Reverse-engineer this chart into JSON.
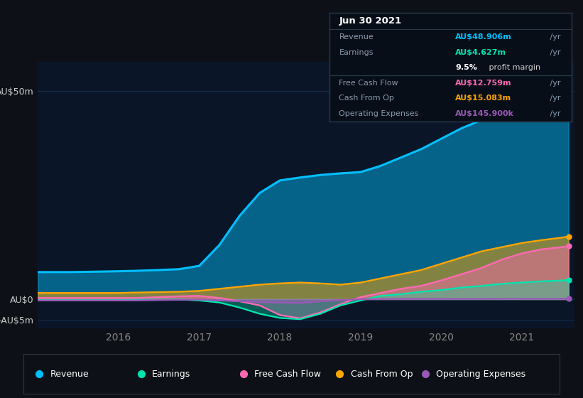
{
  "bg_color": "#0d1117",
  "plot_bg_color": "#0a1628",
  "ylim": [
    -7,
    57
  ],
  "yticks": [
    -5,
    0,
    50
  ],
  "ytick_labels": [
    "-AU$5m",
    "AU$0",
    "AU$50m"
  ],
  "grid_color": "#1a3050",
  "series": {
    "x": [
      2015.0,
      2015.4,
      2015.7,
      2016.0,
      2016.2,
      2016.5,
      2016.75,
      2017.0,
      2017.25,
      2017.5,
      2017.75,
      2018.0,
      2018.25,
      2018.5,
      2018.75,
      2019.0,
      2019.25,
      2019.5,
      2019.75,
      2020.0,
      2020.25,
      2020.5,
      2020.75,
      2021.0,
      2021.25,
      2021.5,
      2021.58
    ],
    "revenue": [
      6.5,
      6.5,
      6.6,
      6.7,
      6.8,
      7.0,
      7.2,
      8.0,
      13.0,
      20.0,
      25.5,
      28.5,
      29.2,
      29.8,
      30.2,
      30.5,
      32.0,
      34.0,
      36.0,
      38.5,
      41.0,
      43.0,
      45.0,
      46.5,
      47.5,
      48.5,
      48.906
    ],
    "earnings": [
      -0.2,
      -0.2,
      -0.2,
      -0.2,
      -0.15,
      -0.1,
      -0.05,
      -0.3,
      -0.8,
      -2.0,
      -3.5,
      -4.5,
      -4.8,
      -3.5,
      -1.5,
      -0.3,
      0.8,
      1.2,
      1.8,
      2.2,
      2.8,
      3.2,
      3.7,
      4.0,
      4.3,
      4.5,
      4.627
    ],
    "free_cash_flow": [
      0.3,
      0.3,
      0.3,
      0.3,
      0.3,
      0.5,
      0.7,
      0.8,
      0.3,
      -0.5,
      -1.5,
      -3.8,
      -4.6,
      -3.2,
      -1.2,
      0.5,
      1.5,
      2.5,
      3.2,
      4.5,
      6.0,
      7.5,
      9.5,
      11.0,
      12.0,
      12.5,
      12.759
    ],
    "cash_from_op": [
      1.5,
      1.5,
      1.5,
      1.5,
      1.6,
      1.7,
      1.8,
      2.0,
      2.5,
      3.0,
      3.5,
      3.8,
      4.0,
      3.8,
      3.5,
      4.0,
      5.0,
      6.0,
      7.0,
      8.5,
      10.0,
      11.5,
      12.5,
      13.5,
      14.2,
      14.8,
      15.083
    ],
    "op_expenses": [
      -0.3,
      -0.3,
      -0.3,
      -0.3,
      -0.3,
      -0.2,
      -0.15,
      -0.1,
      -0.3,
      -0.5,
      -0.7,
      -0.8,
      -0.9,
      -0.5,
      -0.2,
      0.0,
      0.05,
      0.08,
      0.1,
      0.1,
      0.11,
      0.12,
      0.13,
      0.13,
      0.14,
      0.14,
      0.1459
    ]
  },
  "colors": {
    "revenue": "#00bfff",
    "earnings": "#00e5b0",
    "free_cash_flow": "#ff69b4",
    "cash_from_op": "#ffa500",
    "op_expenses": "#9b59b6"
  },
  "legend": [
    {
      "label": "Revenue",
      "color": "#00bfff"
    },
    {
      "label": "Earnings",
      "color": "#00e5b0"
    },
    {
      "label": "Free Cash Flow",
      "color": "#ff69b4"
    },
    {
      "label": "Cash From Op",
      "color": "#ffa500"
    },
    {
      "label": "Operating Expenses",
      "color": "#9b59b6"
    }
  ],
  "xticks": [
    2016,
    2017,
    2018,
    2019,
    2020,
    2021
  ],
  "xtick_labels": [
    "2016",
    "2017",
    "2018",
    "2019",
    "2020",
    "2021"
  ],
  "info_title": "Jun 30 2021",
  "info_rows": [
    {
      "label": "Revenue",
      "value": "AU$48.906m",
      "suffix": " /yr",
      "color": "#00bfff",
      "divider_above": false
    },
    {
      "label": "Earnings",
      "value": "AU$4.627m",
      "suffix": " /yr",
      "color": "#00e5b0",
      "divider_above": false
    },
    {
      "label": "",
      "value": "",
      "suffix": "",
      "color": "",
      "divider_above": false,
      "extra": "9.5% profit margin"
    },
    {
      "label": "Free Cash Flow",
      "value": "AU$12.759m",
      "suffix": " /yr",
      "color": "#ff69b4",
      "divider_above": true
    },
    {
      "label": "Cash From Op",
      "value": "AU$15.083m",
      "suffix": " /yr",
      "color": "#ffa500",
      "divider_above": false
    },
    {
      "label": "Operating Expenses",
      "value": "AU$145.900k",
      "suffix": " /yr",
      "color": "#9b59b6",
      "divider_above": false
    }
  ]
}
